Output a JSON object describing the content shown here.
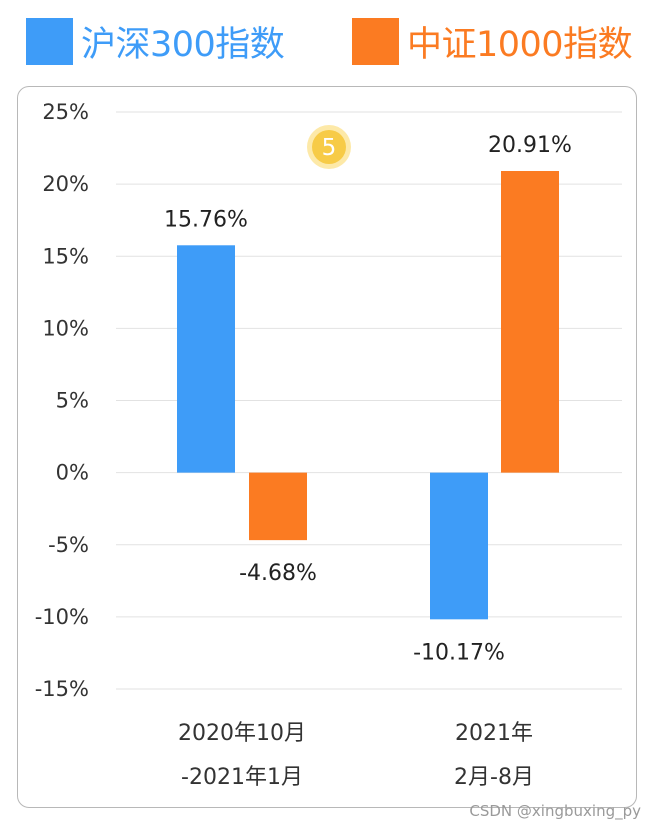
{
  "chart_data": {
    "type": "bar",
    "categories": [
      [
        "2020年10月",
        "-2021年1月"
      ],
      [
        "2021年",
        "2月-8月"
      ]
    ],
    "series": [
      {
        "name": "沪深300指数",
        "values": [
          15.76,
          -10.17
        ],
        "labels": [
          "15.76%",
          "-10.17%"
        ],
        "color": "#3e9cf8"
      },
      {
        "name": "中证1000指数",
        "values": [
          -4.68,
          20.91
        ],
        "labels": [
          "-4.68%",
          "20.91%"
        ],
        "color": "#fb7b22"
      }
    ],
    "ylim": [
      -15,
      25
    ],
    "yticks": [
      25,
      20,
      15,
      10,
      5,
      0,
      -5,
      -10,
      -15
    ],
    "ytick_labels": [
      "25%",
      "20%",
      "15%",
      "10%",
      "5%",
      "0%",
      "-5%",
      "-10%",
      "-15%"
    ],
    "grid": true,
    "legend": "top",
    "badge": "5"
  },
  "watermark": "CSDN @xingbuxing_py"
}
